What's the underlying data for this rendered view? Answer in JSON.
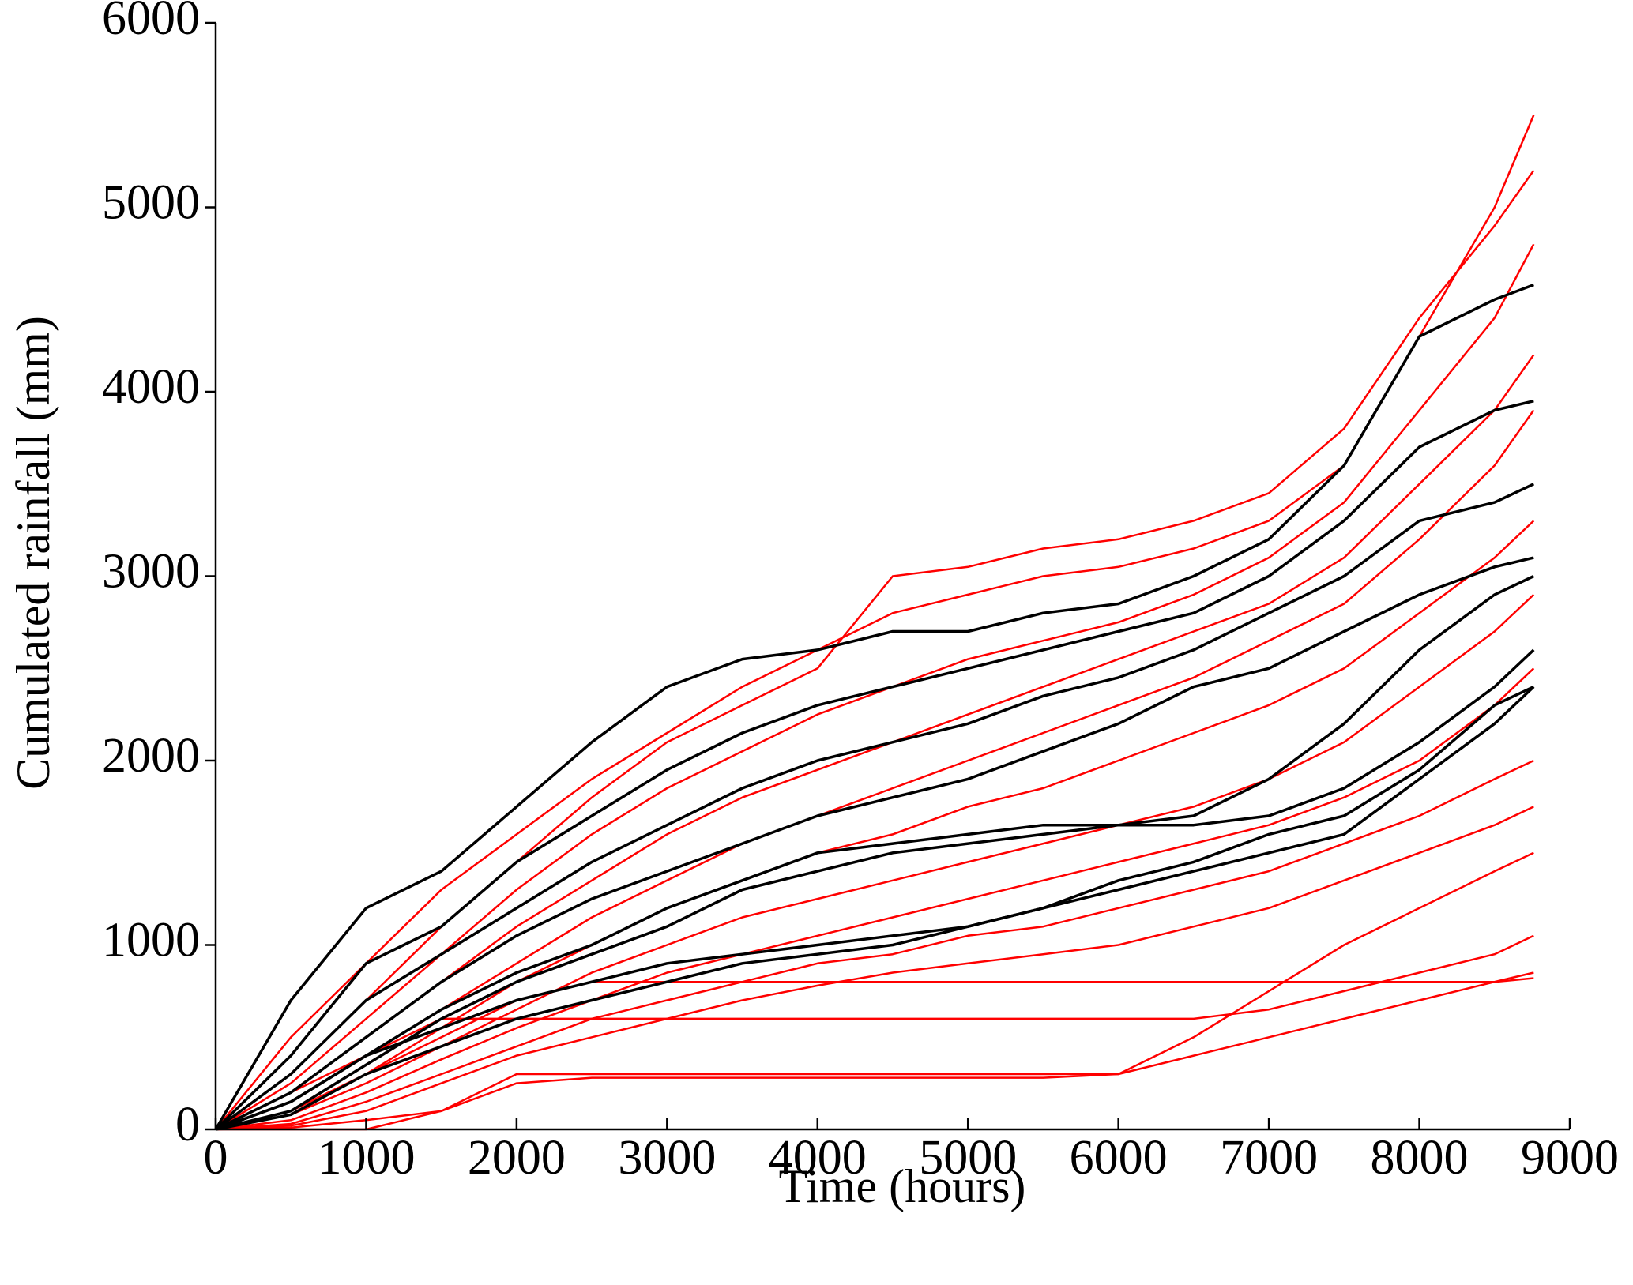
{
  "chart_data": {
    "type": "line",
    "xlabel": "Time (hours)",
    "ylabel": "Cumulated rainfall (mm)",
    "xlim": [
      0,
      9000
    ],
    "xticks": [
      0,
      1000,
      2000,
      3000,
      4000,
      5000,
      6000,
      7000,
      8000,
      9000
    ],
    "ylim": [
      0,
      6000
    ],
    "yticks": [
      0,
      1000,
      2000,
      3000,
      4000,
      5000,
      6000
    ],
    "x": [
      0,
      500,
      1000,
      1500,
      2000,
      2500,
      3000,
      3500,
      4000,
      4500,
      5000,
      5500,
      6000,
      6500,
      7000,
      7500,
      8000,
      8500,
      8760
    ],
    "series": [
      {
        "color": "#ff0000",
        "values": [
          0,
          500,
          900,
          1300,
          1600,
          1900,
          2150,
          2400,
          2600,
          2800,
          2900,
          3000,
          3050,
          3150,
          3300,
          3600,
          4300,
          5000,
          5500
        ]
      },
      {
        "color": "#ff0000",
        "values": [
          0,
          300,
          700,
          1100,
          1450,
          1800,
          2100,
          2300,
          2500,
          3000,
          3050,
          3150,
          3200,
          3300,
          3450,
          3800,
          4400,
          4900,
          5200
        ]
      },
      {
        "color": "#ff0000",
        "values": [
          0,
          250,
          600,
          950,
          1300,
          1600,
          1850,
          2050,
          2250,
          2400,
          2550,
          2650,
          2750,
          2900,
          3100,
          3400,
          3900,
          4400,
          4800
        ]
      },
      {
        "color": "#ff0000",
        "values": [
          0,
          200,
          500,
          800,
          1100,
          1350,
          1600,
          1800,
          1950,
          2100,
          2250,
          2400,
          2550,
          2700,
          2850,
          3100,
          3500,
          3900,
          4200
        ]
      },
      {
        "color": "#ff0000",
        "values": [
          0,
          150,
          400,
          650,
          900,
          1150,
          1350,
          1550,
          1700,
          1850,
          2000,
          2150,
          2300,
          2450,
          2650,
          2850,
          3200,
          3600,
          3900
        ]
      },
      {
        "color": "#ff0000",
        "values": [
          0,
          100,
          300,
          550,
          800,
          1000,
          1200,
          1350,
          1500,
          1600,
          1750,
          1850,
          2000,
          2150,
          2300,
          2500,
          2800,
          3100,
          3300
        ]
      },
      {
        "color": "#ff0000",
        "values": [
          0,
          80,
          250,
          450,
          650,
          850,
          1000,
          1150,
          1250,
          1350,
          1450,
          1550,
          1650,
          1750,
          1900,
          2100,
          2400,
          2700,
          2900
        ]
      },
      {
        "color": "#ff0000",
        "values": [
          0,
          50,
          200,
          380,
          550,
          700,
          850,
          950,
          1050,
          1150,
          1250,
          1350,
          1450,
          1550,
          1650,
          1800,
          2000,
          2300,
          2500
        ]
      },
      {
        "color": "#ff0000",
        "values": [
          0,
          30,
          150,
          300,
          450,
          600,
          700,
          800,
          900,
          950,
          1050,
          1100,
          1200,
          1300,
          1400,
          1550,
          1700,
          1900,
          2000
        ]
      },
      {
        "color": "#ff0000",
        "values": [
          0,
          20,
          100,
          250,
          400,
          500,
          600,
          700,
          780,
          850,
          900,
          950,
          1000,
          1100,
          1200,
          1350,
          1500,
          1650,
          1750
        ]
      },
      {
        "color": "#ff0000",
        "values": [
          0,
          10,
          50,
          100,
          300,
          300,
          300,
          300,
          300,
          300,
          300,
          300,
          300,
          500,
          750,
          1000,
          1200,
          1400,
          1500
        ]
      },
      {
        "color": "#ff0000",
        "values": [
          0,
          200,
          400,
          600,
          600,
          600,
          600,
          600,
          600,
          600,
          600,
          600,
          600,
          600,
          650,
          750,
          850,
          950,
          1050
        ]
      },
      {
        "color": "#ff0000",
        "values": [
          0,
          0,
          0,
          100,
          250,
          280,
          280,
          280,
          280,
          280,
          280,
          280,
          300,
          400,
          500,
          600,
          700,
          800,
          850
        ]
      },
      {
        "color": "#ff0000",
        "values": [
          0,
          100,
          300,
          500,
          700,
          800,
          800,
          800,
          800,
          800,
          800,
          800,
          800,
          800,
          800,
          800,
          800,
          800,
          820
        ]
      },
      {
        "color": "#000000",
        "values": [
          0,
          700,
          1200,
          1400,
          1750,
          2100,
          2400,
          2550,
          2600,
          2700,
          2700,
          2800,
          2850,
          3000,
          3200,
          3600,
          4300,
          4500,
          4580
        ]
      },
      {
        "color": "#000000",
        "values": [
          0,
          400,
          900,
          1100,
          1450,
          1700,
          1950,
          2150,
          2300,
          2400,
          2500,
          2600,
          2700,
          2800,
          3000,
          3300,
          3700,
          3900,
          3950
        ]
      },
      {
        "color": "#000000",
        "values": [
          0,
          300,
          700,
          950,
          1200,
          1450,
          1650,
          1850,
          2000,
          2100,
          2200,
          2350,
          2450,
          2600,
          2800,
          3000,
          3300,
          3400,
          3500
        ]
      },
      {
        "color": "#000000",
        "values": [
          0,
          200,
          500,
          800,
          1050,
          1250,
          1400,
          1550,
          1700,
          1800,
          1900,
          2050,
          2200,
          2400,
          2500,
          2700,
          2900,
          3050,
          3100
        ]
      },
      {
        "color": "#000000",
        "values": [
          0,
          150,
          400,
          650,
          850,
          1000,
          1200,
          1350,
          1500,
          1550,
          1600,
          1650,
          1650,
          1700,
          1900,
          2200,
          2600,
          2900,
          3000
        ]
      },
      {
        "color": "#000000",
        "values": [
          0,
          100,
          350,
          600,
          800,
          950,
          1100,
          1300,
          1400,
          1500,
          1550,
          1600,
          1650,
          1650,
          1700,
          1850,
          2100,
          2400,
          2600
        ]
      },
      {
        "color": "#000000",
        "values": [
          0,
          80,
          300,
          450,
          600,
          700,
          800,
          900,
          950,
          1000,
          1100,
          1200,
          1350,
          1450,
          1600,
          1700,
          1950,
          2300,
          2400
        ]
      },
      {
        "color": "#000000",
        "values": [
          0,
          150,
          400,
          550,
          700,
          800,
          900,
          950,
          1000,
          1050,
          1100,
          1200,
          1300,
          1400,
          1500,
          1600,
          1900,
          2200,
          2400
        ]
      }
    ]
  }
}
